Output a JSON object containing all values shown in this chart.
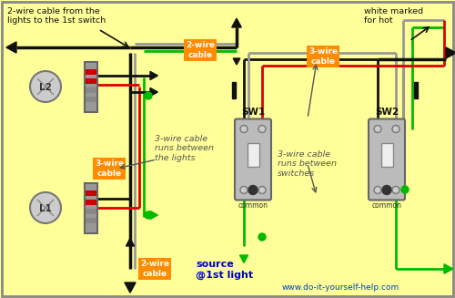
{
  "bg_color": "#FFFF99",
  "wire": {
    "black": "#111111",
    "red": "#DD0000",
    "green": "#00BB00",
    "gray": "#999999"
  },
  "orange": "#FF8C00",
  "blue": "#0000CC",
  "sw_gray": "#AAAAAA",
  "annotations": {
    "top_left": "2-wire cable from the\nlights to the 1st switch",
    "top_mid": "2-wire\ncable",
    "top_right_lbl": "3-wire\ncable",
    "top_right_txt": "white marked\nfor hot",
    "mid_left_lbl": "3-wire\ncable",
    "mid_left_note": "3-wire cable\nruns between\nthe lights",
    "mid_right_note": "3-wire cable\nruns between\nswitches",
    "btm_lbl": "2-wire\ncable",
    "source": "source\n@1st light",
    "L1": "L1",
    "L2": "L2",
    "SW1": "SW1",
    "SW2": "SW2",
    "common": "common",
    "website": "www.do-it-yourself-help.com"
  }
}
